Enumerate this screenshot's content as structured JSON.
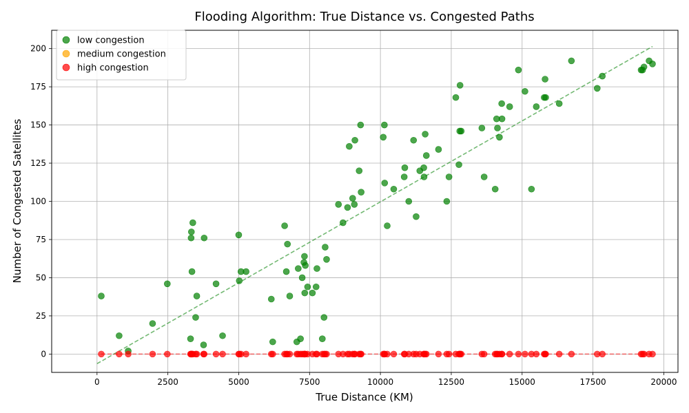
{
  "chart_data": {
    "type": "scatter",
    "title": "Flooding Algorithm: True Distance vs. Congested Paths",
    "xlabel": "True Distance (KM)",
    "ylabel": "Number of Congested Satellites",
    "xlim": [
      -1600,
      20500
    ],
    "ylim": [
      -12,
      212
    ],
    "xticks": [
      0,
      2500,
      5000,
      7500,
      10000,
      12500,
      15000,
      17500,
      20000
    ],
    "yticks": [
      0,
      25,
      50,
      75,
      100,
      125,
      150,
      175,
      200
    ],
    "grid": true,
    "legend_position": "top-left",
    "series": [
      {
        "name": "low congestion",
        "color": "#008000",
        "points": [
          [
            150,
            38
          ],
          [
            780,
            12
          ],
          [
            1100,
            2
          ],
          [
            1960,
            20
          ],
          [
            2480,
            46
          ],
          [
            3300,
            10
          ],
          [
            3320,
            76
          ],
          [
            3330,
            80
          ],
          [
            3350,
            54
          ],
          [
            3380,
            86
          ],
          [
            3480,
            24
          ],
          [
            3520,
            38
          ],
          [
            3760,
            6
          ],
          [
            3780,
            76
          ],
          [
            4200,
            46
          ],
          [
            4430,
            12
          ],
          [
            5000,
            78
          ],
          [
            5020,
            48
          ],
          [
            5080,
            54
          ],
          [
            5260,
            54
          ],
          [
            6150,
            36
          ],
          [
            6200,
            8
          ],
          [
            6620,
            84
          ],
          [
            6680,
            54
          ],
          [
            6720,
            72
          ],
          [
            6800,
            38
          ],
          [
            7050,
            8
          ],
          [
            7100,
            56
          ],
          [
            7180,
            10
          ],
          [
            7240,
            50
          ],
          [
            7300,
            60
          ],
          [
            7320,
            64
          ],
          [
            7330,
            40
          ],
          [
            7350,
            58
          ],
          [
            7430,
            44
          ],
          [
            7600,
            40
          ],
          [
            7730,
            44
          ],
          [
            7760,
            56
          ],
          [
            7950,
            10
          ],
          [
            8010,
            24
          ],
          [
            8050,
            70
          ],
          [
            8100,
            62
          ],
          [
            8520,
            98
          ],
          [
            8680,
            86
          ],
          [
            8840,
            96
          ],
          [
            8900,
            136
          ],
          [
            9020,
            102
          ],
          [
            9080,
            98
          ],
          [
            9100,
            140
          ],
          [
            9250,
            120
          ],
          [
            9300,
            150
          ],
          [
            9320,
            106
          ],
          [
            10100,
            142
          ],
          [
            10140,
            150
          ],
          [
            10150,
            112
          ],
          [
            10240,
            84
          ],
          [
            10470,
            108
          ],
          [
            10840,
            116
          ],
          [
            10860,
            122
          ],
          [
            11000,
            100
          ],
          [
            11170,
            140
          ],
          [
            11260,
            90
          ],
          [
            11390,
            120
          ],
          [
            11530,
            122
          ],
          [
            11540,
            116
          ],
          [
            11580,
            144
          ],
          [
            11620,
            130
          ],
          [
            12050,
            134
          ],
          [
            12340,
            100
          ],
          [
            12420,
            116
          ],
          [
            12660,
            168
          ],
          [
            12770,
            124
          ],
          [
            12800,
            146
          ],
          [
            12810,
            176
          ],
          [
            12850,
            146
          ],
          [
            13580,
            148
          ],
          [
            13660,
            116
          ],
          [
            14050,
            108
          ],
          [
            14100,
            154
          ],
          [
            14130,
            148
          ],
          [
            14200,
            142
          ],
          [
            14280,
            164
          ],
          [
            14290,
            154
          ],
          [
            14560,
            162
          ],
          [
            14870,
            186
          ],
          [
            15100,
            172
          ],
          [
            15330,
            108
          ],
          [
            15500,
            162
          ],
          [
            15780,
            168
          ],
          [
            15810,
            180
          ],
          [
            15830,
            168
          ],
          [
            16310,
            164
          ],
          [
            16740,
            192
          ],
          [
            17650,
            174
          ],
          [
            17830,
            182
          ],
          [
            19200,
            186
          ],
          [
            19250,
            186
          ],
          [
            19300,
            188
          ],
          [
            19480,
            192
          ],
          [
            19600,
            190
          ]
        ],
        "trendline": [
          [
            0,
            -6.3
          ],
          [
            19600,
            201.4
          ]
        ]
      },
      {
        "name": "medium congestion",
        "color": "#FFA500",
        "points": [],
        "trendline": null
      },
      {
        "name": "high congestion",
        "color": "#FF0000",
        "points": [
          [
            150,
            0
          ],
          [
            780,
            0
          ],
          [
            1100,
            0
          ],
          [
            1960,
            0
          ],
          [
            2480,
            0
          ],
          [
            3300,
            0
          ],
          [
            3320,
            0
          ],
          [
            3330,
            0
          ],
          [
            3350,
            0
          ],
          [
            3380,
            0
          ],
          [
            3480,
            0
          ],
          [
            3520,
            0
          ],
          [
            3760,
            0
          ],
          [
            3780,
            0
          ],
          [
            4200,
            0
          ],
          [
            4430,
            0
          ],
          [
            5000,
            0
          ],
          [
            5020,
            0
          ],
          [
            5080,
            0
          ],
          [
            5260,
            0
          ],
          [
            6150,
            0
          ],
          [
            6200,
            0
          ],
          [
            6620,
            0
          ],
          [
            6680,
            0
          ],
          [
            6720,
            0
          ],
          [
            6800,
            0
          ],
          [
            7050,
            0
          ],
          [
            7100,
            0
          ],
          [
            7180,
            0
          ],
          [
            7240,
            0
          ],
          [
            7300,
            0
          ],
          [
            7320,
            0
          ],
          [
            7330,
            0
          ],
          [
            7350,
            0
          ],
          [
            7430,
            0
          ],
          [
            7600,
            0
          ],
          [
            7730,
            0
          ],
          [
            7760,
            0
          ],
          [
            7950,
            0
          ],
          [
            8010,
            0
          ],
          [
            8050,
            0
          ],
          [
            8100,
            0
          ],
          [
            8520,
            0
          ],
          [
            8680,
            0
          ],
          [
            8840,
            0
          ],
          [
            8900,
            0
          ],
          [
            9020,
            0
          ],
          [
            9080,
            0
          ],
          [
            9100,
            0
          ],
          [
            9250,
            0
          ],
          [
            9300,
            0
          ],
          [
            9320,
            0
          ],
          [
            10100,
            0
          ],
          [
            10140,
            0
          ],
          [
            10150,
            0
          ],
          [
            10240,
            0
          ],
          [
            10470,
            0
          ],
          [
            10840,
            0
          ],
          [
            10860,
            0
          ],
          [
            11000,
            0
          ],
          [
            11170,
            0
          ],
          [
            11260,
            0
          ],
          [
            11390,
            0
          ],
          [
            11530,
            0
          ],
          [
            11540,
            0
          ],
          [
            11580,
            0
          ],
          [
            11620,
            0
          ],
          [
            12050,
            0
          ],
          [
            12340,
            0
          ],
          [
            12420,
            0
          ],
          [
            12660,
            0
          ],
          [
            12770,
            0
          ],
          [
            12800,
            0
          ],
          [
            12810,
            0
          ],
          [
            12850,
            0
          ],
          [
            13580,
            0
          ],
          [
            13660,
            0
          ],
          [
            14050,
            0
          ],
          [
            14100,
            0
          ],
          [
            14130,
            0
          ],
          [
            14200,
            0
          ],
          [
            14280,
            0
          ],
          [
            14290,
            0
          ],
          [
            14560,
            0
          ],
          [
            14870,
            0
          ],
          [
            15100,
            0
          ],
          [
            15330,
            0
          ],
          [
            15500,
            0
          ],
          [
            15780,
            0
          ],
          [
            15810,
            0
          ],
          [
            15830,
            0
          ],
          [
            16310,
            0
          ],
          [
            16740,
            0
          ],
          [
            17650,
            0
          ],
          [
            17830,
            0
          ],
          [
            19200,
            0
          ],
          [
            19250,
            0
          ],
          [
            19300,
            0
          ],
          [
            19480,
            0
          ],
          [
            19600,
            0
          ]
        ],
        "trendline": [
          [
            150,
            0
          ],
          [
            19600,
            0
          ]
        ]
      }
    ]
  }
}
